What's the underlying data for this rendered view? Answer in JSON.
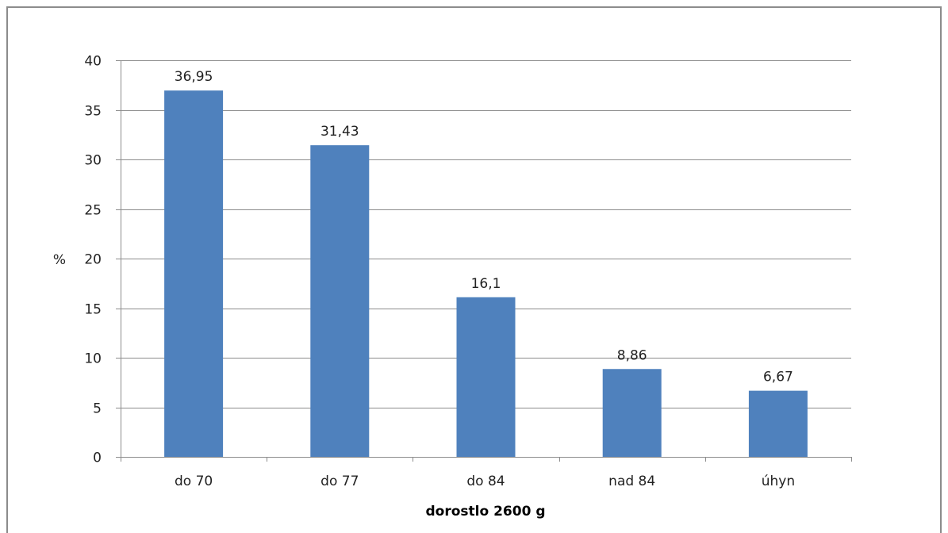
{
  "chart_data": {
    "type": "bar",
    "categories": [
      "do 70",
      "do 77",
      "do 84",
      "nad 84",
      "úhyn"
    ],
    "values": [
      36.95,
      31.43,
      16.1,
      8.86,
      6.67
    ],
    "data_labels": [
      "36,95",
      "31,43",
      "16,1",
      "8,86",
      "6,67"
    ],
    "title": "",
    "xlabel": "dorostlo 2600 g",
    "ylabel": "%",
    "ylim": [
      0,
      40
    ],
    "yticks": [
      0,
      5,
      10,
      15,
      20,
      25,
      30,
      35,
      40
    ],
    "grid": true,
    "legend": "none",
    "bar_color": "#4f81bd",
    "grid_color": "#8c8c8c"
  }
}
